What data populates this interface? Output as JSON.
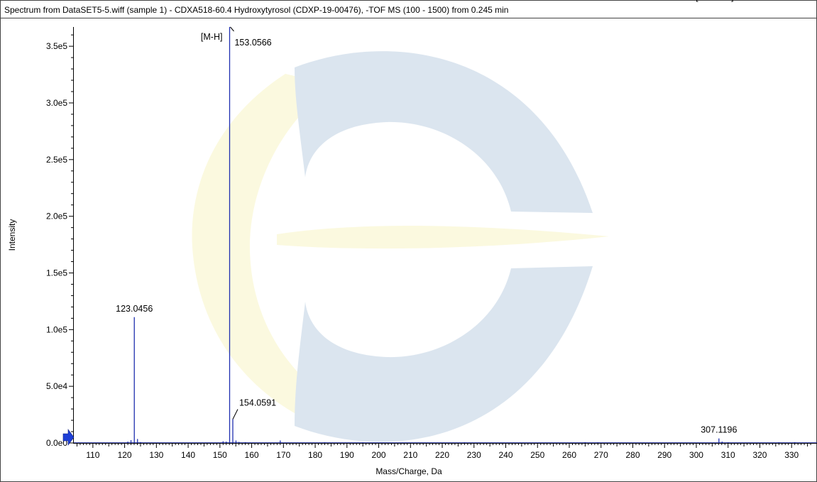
{
  "chart_data": {
    "type": "bar",
    "title": "Spectrum from DataSET5-5.wiff (sample 1) - CDXA518-60.4 Hydroxytyrosol (CDXP-19-00476), -TOF MS (100 - 1500) from 0.245 min",
    "xlabel": "Mass/Charge, Da",
    "ylabel": "Intensity",
    "xlim": [
      104,
      338
    ],
    "ylim": [
      0,
      367000
    ],
    "x_ticks": [
      "110",
      "120",
      "130",
      "140",
      "150",
      "160",
      "170",
      "180",
      "190",
      "200",
      "210",
      "220",
      "230",
      "240",
      "250",
      "260",
      "270",
      "280",
      "290",
      "300",
      "310",
      "320",
      "330"
    ],
    "y_ticks": [
      {
        "value": 0,
        "label": "0.0e0"
      },
      {
        "value": 50000,
        "label": "5.0e4"
      },
      {
        "value": 100000,
        "label": "1.0e5"
      },
      {
        "value": 150000,
        "label": "1.5e5"
      },
      {
        "value": 200000,
        "label": "2.0e5"
      },
      {
        "value": 250000,
        "label": "2.5e5"
      },
      {
        "value": 300000,
        "label": "3.0e5"
      },
      {
        "value": 350000,
        "label": "3.5e5"
      }
    ],
    "peaks": [
      {
        "mz": 121.0,
        "intensity": 1200
      },
      {
        "mz": 122.0,
        "intensity": 2500
      },
      {
        "mz": 123.0456,
        "intensity": 111000
      },
      {
        "mz": 124.05,
        "intensity": 3500
      },
      {
        "mz": 125.0,
        "intensity": 800
      },
      {
        "mz": 151.0,
        "intensity": 1500
      },
      {
        "mz": 152.0,
        "intensity": 1200
      },
      {
        "mz": 153.0566,
        "intensity": 367000
      },
      {
        "mz": 154.0591,
        "intensity": 21000
      },
      {
        "mz": 155.06,
        "intensity": 2200
      },
      {
        "mz": 156.0,
        "intensity": 900
      },
      {
        "mz": 158.0,
        "intensity": 700
      },
      {
        "mz": 169.0,
        "intensity": 2200
      },
      {
        "mz": 183.0,
        "intensity": 600
      },
      {
        "mz": 195.0,
        "intensity": 500
      },
      {
        "mz": 227.0,
        "intensity": 500
      },
      {
        "mz": 265.0,
        "intensity": 700
      },
      {
        "mz": 269.0,
        "intensity": 500
      },
      {
        "mz": 307.1196,
        "intensity": 4000
      },
      {
        "mz": 308.12,
        "intensity": 1200
      },
      {
        "mz": 310.0,
        "intensity": 600
      },
      {
        "mz": 326.0,
        "intensity": 600
      },
      {
        "mz": 331.0,
        "intensity": 700
      }
    ],
    "labels": [
      {
        "text": "153.0566",
        "mz": 153.0566,
        "intensity": 367000
      },
      {
        "text": "123.0456",
        "mz": 123.0456,
        "intensity": 111000
      },
      {
        "text": "154.0591",
        "mz": 154.0591,
        "intensity": 21000
      },
      {
        "text": "307.1196",
        "mz": 307.1196,
        "intensity": 4000
      }
    ],
    "annotations": [
      {
        "text": "[M-H]",
        "mz": 153.0566
      },
      {
        "text": "[Dimer-H]",
        "mz": 307.1196
      }
    ],
    "series_color": "#1f2fb0",
    "grid": false
  },
  "colors": {
    "peak": "#1f2fb0",
    "watermark_blue": "#dbe5ef",
    "watermark_yellow": "#fbf9df",
    "marker": "#1e3fd6"
  }
}
